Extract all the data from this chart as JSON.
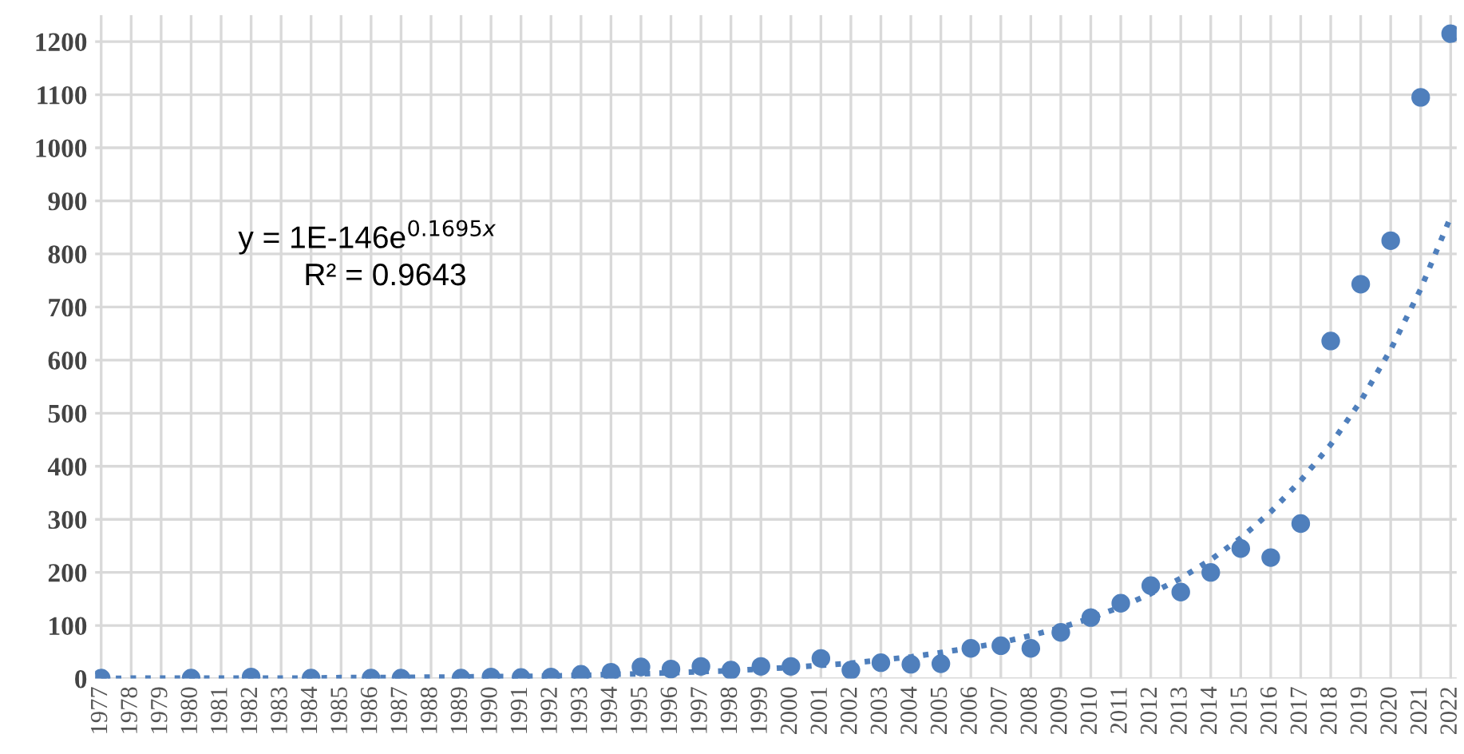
{
  "chart_data": {
    "type": "scatter",
    "categories": [
      "1977",
      "1978",
      "1979",
      "1980",
      "1981",
      "1982",
      "1983",
      "1984",
      "1985",
      "1986",
      "1987",
      "1988",
      "1989",
      "1990",
      "1991",
      "1992",
      "1993",
      "1994",
      "1995",
      "1996",
      "1997",
      "1998",
      "1999",
      "2000",
      "2001",
      "2002",
      "2003",
      "2004",
      "2005",
      "2006",
      "2007",
      "2008",
      "2009",
      "2010",
      "2011",
      "2012",
      "2013",
      "2014",
      "2015",
      "2016",
      "2017",
      "2018",
      "2019",
      "2020",
      "2021",
      "2022"
    ],
    "series": [
      {
        "color": "#4f7fbc",
        "marker": "circle",
        "values": [
          1,
          null,
          null,
          1,
          null,
          3,
          null,
          1,
          null,
          1,
          1,
          null,
          1,
          3,
          2,
          3,
          8,
          12,
          22,
          18,
          23,
          16,
          23,
          23,
          38,
          16,
          30,
          27,
          28,
          57,
          62,
          57,
          87,
          115,
          142,
          175,
          163,
          200,
          245,
          228,
          292,
          636,
          743,
          825,
          1095,
          1215
        ]
      },
      {
        "type": "line",
        "color": "#4f7fbc",
        "line_style": "dotted",
        "marker": "none",
        "values": [
          0,
          1,
          1,
          1,
          1,
          1,
          1,
          1,
          2,
          2,
          2,
          3,
          3,
          4,
          4,
          5,
          6,
          8,
          9,
          11,
          13,
          15,
          18,
          21,
          25,
          29,
          35,
          41,
          49,
          58,
          68,
          81,
          96,
          114,
          135,
          160,
          189,
          224,
          265,
          314,
          373,
          441,
          523,
          620,
          734,
          870
        ]
      }
    ],
    "ylim": [
      0,
      1250
    ],
    "yticks": [
      0,
      100,
      200,
      300,
      400,
      500,
      600,
      700,
      800,
      900,
      1000,
      1100,
      1200
    ],
    "grid": true,
    "annotations": [
      "y = 1E-146e$^{0.1695x}$",
      "R² = 0.9643"
    ]
  }
}
